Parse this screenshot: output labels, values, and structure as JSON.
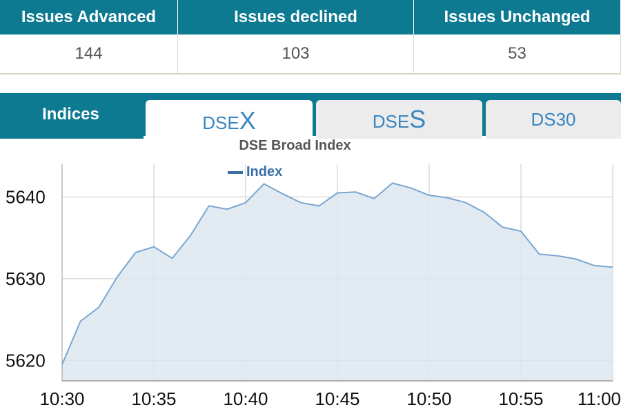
{
  "summary": {
    "headers": [
      "Issues Advanced",
      "Issues declined",
      "Issues Unchanged"
    ],
    "values": [
      "144",
      "103",
      "53"
    ]
  },
  "tabs": {
    "section_label": "Indices",
    "items": [
      {
        "prefix": "DSE",
        "suffix": "X",
        "active": true
      },
      {
        "prefix": "DSE",
        "suffix": "S",
        "active": false
      },
      {
        "prefix": "DS30",
        "suffix": "",
        "active": false
      }
    ]
  },
  "colors": {
    "header_bg": "#0e7a92",
    "line": "#7aa6d2",
    "fill": "#dde6f0",
    "legend": "#3a6fa8"
  },
  "chart_data": {
    "type": "area",
    "title": "DSE Broad Index",
    "legend": [
      "Index"
    ],
    "series": [
      {
        "name": "Index",
        "x": [
          "10:30",
          "10:31",
          "10:32",
          "10:33",
          "10:34",
          "10:35",
          "10:36",
          "10:37",
          "10:38",
          "10:39",
          "10:40",
          "10:41",
          "10:42",
          "10:43",
          "10:44",
          "10:45",
          "10:46",
          "10:47",
          "10:48",
          "10:49",
          "10:50",
          "10:51",
          "10:52",
          "10:53",
          "10:54",
          "10:55",
          "10:56",
          "10:57",
          "10:58",
          "10:59",
          "11:00"
        ],
        "values": [
          5619.5,
          5624.8,
          5626.5,
          5630.2,
          5633.2,
          5633.9,
          5632.5,
          5635.3,
          5638.9,
          5638.5,
          5639.3,
          5641.6,
          5640.4,
          5639.3,
          5638.9,
          5640.5,
          5640.6,
          5639.8,
          5641.7,
          5641.1,
          5640.2,
          5639.9,
          5639.3,
          5638.1,
          5636.3,
          5635.8,
          5633.0,
          5632.8,
          5632.4,
          5631.6,
          5631.4
        ]
      }
    ],
    "x_ticks": [
      "10:30",
      "10:35",
      "10:40",
      "10:45",
      "10:50",
      "10:55",
      "11:00"
    ],
    "y_ticks": [
      5620,
      5630,
      5640
    ],
    "ylim": [
      5617.5,
      5644
    ],
    "grid": true
  }
}
